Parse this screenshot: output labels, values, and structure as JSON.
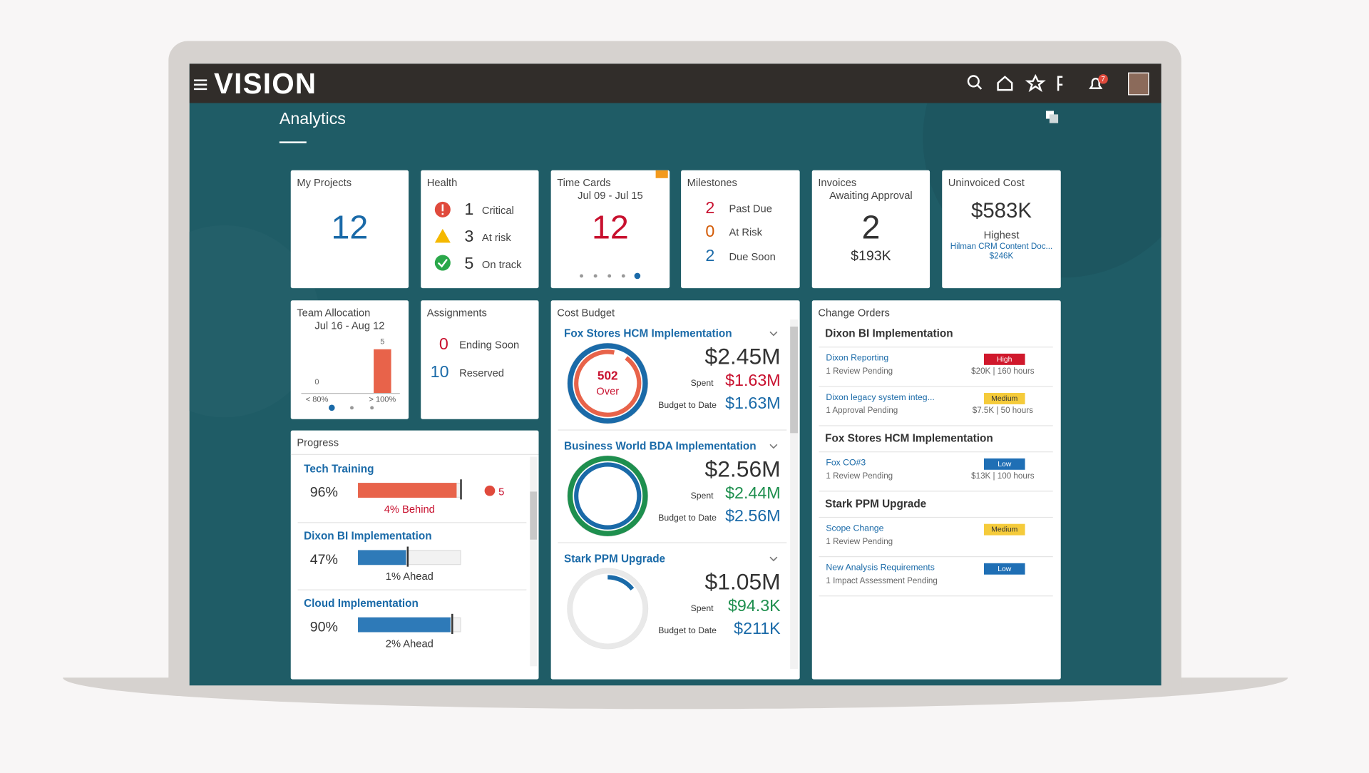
{
  "header": {
    "brand": "VISION",
    "notification_count": "7"
  },
  "page_title": "Analytics",
  "cards": {
    "my_projects": {
      "title": "My Projects",
      "count": "12"
    },
    "health": {
      "title": "Health",
      "items": [
        {
          "count": "1",
          "label": "Critical"
        },
        {
          "count": "3",
          "label": "At risk"
        },
        {
          "count": "5",
          "label": "On track"
        }
      ]
    },
    "time_cards": {
      "title": "Time Cards",
      "period": "Jul 09 - Jul 15",
      "count": "12"
    },
    "milestones": {
      "title": "Milestones",
      "items": [
        {
          "count": "2",
          "label": "Past Due"
        },
        {
          "count": "0",
          "label": "At Risk"
        },
        {
          "count": "2",
          "label": "Due Soon"
        }
      ]
    },
    "invoices": {
      "title": "Invoices",
      "subtitle": "Awaiting Approval",
      "count": "2",
      "amount": "$193K"
    },
    "uninvoiced_cost": {
      "title": "Uninvoiced Cost",
      "amount": "$583K",
      "caption": "Highest",
      "project": "Hilman CRM Content Doc...",
      "project_amount": "$246K"
    },
    "team_allocation": {
      "title": "Team Allocation",
      "period": "Jul 16 - Aug 12",
      "categories": [
        "< 80%",
        "> 100%"
      ],
      "values": [
        0,
        5
      ]
    },
    "assignments": {
      "title": "Assignments",
      "items": [
        {
          "count": "0",
          "label": "Ending Soon"
        },
        {
          "count": "10",
          "label": "Reserved"
        }
      ]
    },
    "progress": {
      "title": "Progress",
      "items": [
        {
          "name": "Tech Training",
          "value": 96,
          "value_label": "96%",
          "status": "4% Behind",
          "alerts": "5"
        },
        {
          "name": "Dixon BI Implementation",
          "value": 47,
          "value_label": "47%",
          "status": "1% Ahead"
        },
        {
          "name": "Cloud Implementation",
          "value": 90,
          "value_label": "90%",
          "status": "2% Ahead"
        }
      ]
    },
    "cost_budget": {
      "title": "Cost Budget",
      "spent_label": "Spent",
      "budget_label": "Budget to Date",
      "projects": [
        {
          "name": "Fox Stores HCM Implementation",
          "total": "$2.45M",
          "spent": "$1.63M",
          "budget": "$1.63M",
          "overage": "502",
          "overage_label": "Over"
        },
        {
          "name": "Business World BDA Implementation",
          "total": "$2.56M",
          "spent": "$2.44M",
          "budget": "$2.56M"
        },
        {
          "name": "Stark PPM Upgrade",
          "total": "$1.05M",
          "spent": "$94.3K",
          "budget": "$211K"
        }
      ]
    },
    "change_orders": {
      "title": "Change Orders",
      "groups": [
        {
          "project": "Dixon BI Implementation",
          "orders": [
            {
              "name": "Dixon Reporting",
              "status": "1 Review Pending",
              "priority": "High",
              "detail": "$20K | 160 hours"
            },
            {
              "name": "Dixon legacy system integ...",
              "status": "1 Approval Pending",
              "priority": "Medium",
              "detail": "$7.5K | 50 hours"
            }
          ]
        },
        {
          "project": "Fox Stores HCM Implementation",
          "orders": [
            {
              "name": "Fox CO#3",
              "status": "1 Review Pending",
              "priority": "Low",
              "detail": "$13K | 100 hours"
            }
          ]
        },
        {
          "project": "Stark PPM Upgrade",
          "orders": [
            {
              "name": "Scope Change",
              "status": "1 Review Pending",
              "priority": "Medium"
            },
            {
              "name": "New Analysis Requirements",
              "status": "1 Impact Assessment Pending",
              "priority": "Low"
            }
          ]
        }
      ]
    }
  }
}
